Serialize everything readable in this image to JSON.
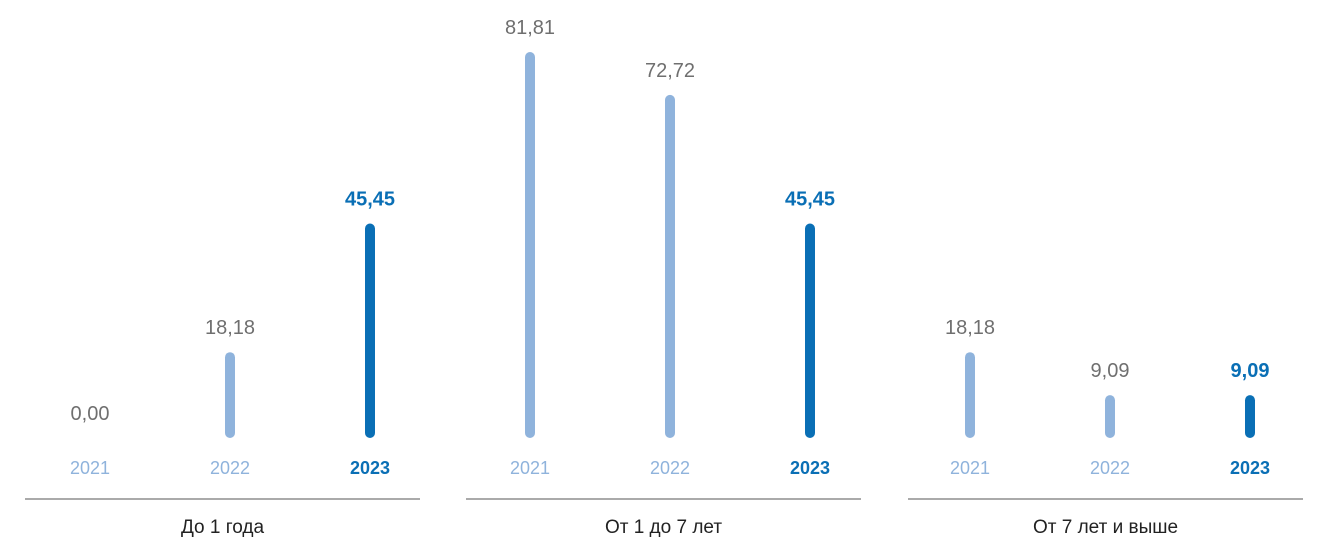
{
  "chart_data": {
    "type": "bar",
    "groups": [
      "До 1 года",
      "От 1 до 7 лет",
      "От 7 лет и выше"
    ],
    "categories": [
      "2021",
      "2022",
      "2023"
    ],
    "values": [
      [
        0.0,
        18.18,
        45.45
      ],
      [
        81.81,
        72.72,
        45.45
      ],
      [
        18.18,
        9.09,
        9.09
      ]
    ],
    "value_labels": [
      [
        "0,00",
        "18,18",
        "45,45"
      ],
      [
        "81,81",
        "72,72",
        "45,45"
      ],
      [
        "18,18",
        "9,09",
        "9,09"
      ]
    ],
    "highlight_category": "2023",
    "ylim": [
      0,
      81.81
    ],
    "grid": false,
    "legend": "none"
  },
  "colors": {
    "bar_light": "#8fb3dc",
    "bar_highlight": "#0a6fb5",
    "value_text": "#6f6f6f",
    "year_light": "#8fb3dc",
    "group_label": "#222222",
    "baseline": "#555555"
  }
}
